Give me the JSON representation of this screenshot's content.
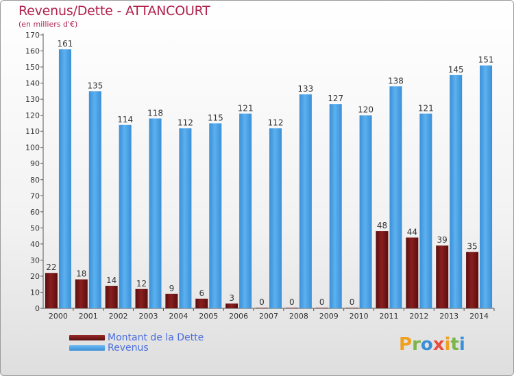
{
  "header": {
    "title": "Revenus/Dette - ATTANCOURT",
    "subtitle": "(en milliers d'€)"
  },
  "legend": {
    "items": [
      {
        "label": "Montant de la Dette",
        "color": "#8b1a1a"
      },
      {
        "label": "Revenus",
        "color": "#4da3e8"
      }
    ]
  },
  "logo": {
    "letters": [
      "P",
      "r",
      "o",
      "x",
      "i",
      "t",
      "i"
    ],
    "colors": [
      "#f0a020",
      "#7ab648",
      "#3a8fd8",
      "#e84c3d",
      "#f0a020",
      "#7ab648",
      "#3a8fd8"
    ]
  },
  "chart_data": {
    "type": "bar",
    "title": "Revenus/Dette - ATTANCOURT",
    "subtitle": "(en milliers d'€)",
    "categories": [
      "2000",
      "2001",
      "2002",
      "2003",
      "2004",
      "2005",
      "2006",
      "2007",
      "2008",
      "2009",
      "2010",
      "2011",
      "2012",
      "2013",
      "2014"
    ],
    "series": [
      {
        "name": "Montant de la Dette",
        "color": "#7a1616",
        "values": [
          22,
          18,
          14,
          12,
          9,
          6,
          3,
          0,
          0,
          0,
          0,
          48,
          44,
          39,
          35
        ]
      },
      {
        "name": "Revenus",
        "color": "#4ea6ea",
        "values": [
          161,
          135,
          114,
          118,
          112,
          115,
          121,
          112,
          133,
          127,
          120,
          138,
          121,
          145,
          151
        ]
      }
    ],
    "ylim": [
      0,
      170
    ],
    "yticks": [
      0,
      10,
      20,
      30,
      40,
      50,
      60,
      70,
      80,
      90,
      100,
      110,
      120,
      130,
      140,
      150,
      160,
      170
    ],
    "grid": false,
    "legend_position": "bottom-left"
  }
}
